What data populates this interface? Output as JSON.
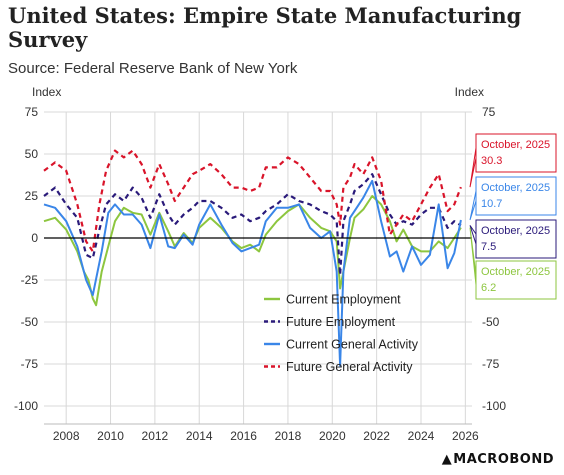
{
  "header": {
    "title": "United States: Empire State Manufacturing Survey",
    "subtitle": "Source: Federal Reserve Bank of New York"
  },
  "logo_text": "MACROBOND",
  "chart_data": {
    "type": "line",
    "ylabel_left": "Index",
    "ylabel_right": "Index",
    "ylim": [
      -100,
      75
    ],
    "yticks": [
      75,
      50,
      25,
      0,
      -25,
      -50,
      -75,
      -100
    ],
    "xlim": [
      2007,
      2026.3
    ],
    "xticks": [
      2008,
      2010,
      2012,
      2014,
      2016,
      2018,
      2020,
      2022,
      2024,
      2026
    ],
    "grid": true,
    "legend_position": "bottom-center",
    "series": [
      {
        "name": "Current Employment",
        "color": "#8dc63f",
        "style": "solid",
        "points": [
          [
            2007.0,
            10
          ],
          [
            2007.5,
            12
          ],
          [
            2008.0,
            5
          ],
          [
            2008.5,
            -8
          ],
          [
            2008.8,
            -20
          ],
          [
            2009.0,
            -25
          ],
          [
            2009.2,
            -36
          ],
          [
            2009.35,
            -40
          ],
          [
            2009.6,
            -20
          ],
          [
            2009.9,
            -5
          ],
          [
            2010.2,
            10
          ],
          [
            2010.6,
            18
          ],
          [
            2011.0,
            15
          ],
          [
            2011.4,
            14
          ],
          [
            2011.8,
            2
          ],
          [
            2012.2,
            15
          ],
          [
            2012.6,
            4
          ],
          [
            2012.9,
            -5
          ],
          [
            2013.3,
            3
          ],
          [
            2013.7,
            -3
          ],
          [
            2014.0,
            6
          ],
          [
            2014.5,
            12
          ],
          [
            2015.0,
            6
          ],
          [
            2015.5,
            -2
          ],
          [
            2015.9,
            -6
          ],
          [
            2016.3,
            -4
          ],
          [
            2016.7,
            -8
          ],
          [
            2017.0,
            2
          ],
          [
            2017.5,
            10
          ],
          [
            2018.0,
            16
          ],
          [
            2018.5,
            20
          ],
          [
            2019.0,
            12
          ],
          [
            2019.5,
            6
          ],
          [
            2019.9,
            4
          ],
          [
            2020.2,
            -2
          ],
          [
            2020.35,
            -30
          ],
          [
            2020.5,
            -20
          ],
          [
            2020.8,
            0
          ],
          [
            2021.0,
            12
          ],
          [
            2021.4,
            17
          ],
          [
            2021.8,
            25
          ],
          [
            2022.2,
            20
          ],
          [
            2022.6,
            10
          ],
          [
            2022.9,
            -2
          ],
          [
            2023.2,
            5
          ],
          [
            2023.6,
            -5
          ],
          [
            2024.0,
            -8
          ],
          [
            2024.4,
            -8
          ],
          [
            2024.8,
            -2
          ],
          [
            2025.2,
            -6
          ],
          [
            2025.5,
            0
          ],
          [
            2025.8,
            6.2
          ]
        ]
      },
      {
        "name": "Future Employment",
        "color": "#2a1a7a",
        "style": "dashed",
        "points": [
          [
            2007.0,
            25
          ],
          [
            2007.5,
            30
          ],
          [
            2008.0,
            20
          ],
          [
            2008.5,
            12
          ],
          [
            2008.9,
            -10
          ],
          [
            2009.2,
            -12
          ],
          [
            2009.5,
            5
          ],
          [
            2009.8,
            20
          ],
          [
            2010.2,
            26
          ],
          [
            2010.6,
            22
          ],
          [
            2011.0,
            30
          ],
          [
            2011.4,
            24
          ],
          [
            2011.8,
            12
          ],
          [
            2012.2,
            26
          ],
          [
            2012.6,
            14
          ],
          [
            2012.9,
            8
          ],
          [
            2013.3,
            14
          ],
          [
            2013.7,
            18
          ],
          [
            2014.0,
            22
          ],
          [
            2014.5,
            22
          ],
          [
            2015.0,
            18
          ],
          [
            2015.5,
            12
          ],
          [
            2015.9,
            14
          ],
          [
            2016.3,
            10
          ],
          [
            2016.7,
            12
          ],
          [
            2017.0,
            16
          ],
          [
            2017.5,
            20
          ],
          [
            2018.0,
            26
          ],
          [
            2018.5,
            22
          ],
          [
            2019.0,
            20
          ],
          [
            2019.5,
            16
          ],
          [
            2019.9,
            14
          ],
          [
            2020.2,
            10
          ],
          [
            2020.35,
            -22
          ],
          [
            2020.5,
            10
          ],
          [
            2020.8,
            20
          ],
          [
            2021.0,
            28
          ],
          [
            2021.4,
            32
          ],
          [
            2021.8,
            38
          ],
          [
            2022.2,
            26
          ],
          [
            2022.6,
            14
          ],
          [
            2022.9,
            8
          ],
          [
            2023.2,
            10
          ],
          [
            2023.6,
            8
          ],
          [
            2024.0,
            14
          ],
          [
            2024.4,
            18
          ],
          [
            2024.8,
            18
          ],
          [
            2025.2,
            6
          ],
          [
            2025.5,
            10
          ],
          [
            2025.8,
            7.5
          ]
        ]
      },
      {
        "name": "Current General Activity",
        "color": "#3a86e8",
        "style": "solid",
        "points": [
          [
            2007.0,
            20
          ],
          [
            2007.5,
            18
          ],
          [
            2008.0,
            10
          ],
          [
            2008.5,
            -5
          ],
          [
            2008.9,
            -25
          ],
          [
            2009.2,
            -34
          ],
          [
            2009.6,
            -8
          ],
          [
            2009.9,
            15
          ],
          [
            2010.2,
            20
          ],
          [
            2010.6,
            14
          ],
          [
            2011.0,
            14
          ],
          [
            2011.4,
            8
          ],
          [
            2011.8,
            -6
          ],
          [
            2012.2,
            14
          ],
          [
            2012.6,
            -5
          ],
          [
            2012.9,
            -6
          ],
          [
            2013.3,
            2
          ],
          [
            2013.7,
            -4
          ],
          [
            2014.0,
            8
          ],
          [
            2014.5,
            20
          ],
          [
            2015.0,
            8
          ],
          [
            2015.5,
            -3
          ],
          [
            2015.9,
            -8
          ],
          [
            2016.3,
            -6
          ],
          [
            2016.7,
            -4
          ],
          [
            2017.0,
            10
          ],
          [
            2017.5,
            18
          ],
          [
            2018.0,
            18
          ],
          [
            2018.5,
            20
          ],
          [
            2019.0,
            6
          ],
          [
            2019.5,
            0
          ],
          [
            2019.9,
            4
          ],
          [
            2020.2,
            -20
          ],
          [
            2020.35,
            -76
          ],
          [
            2020.5,
            -20
          ],
          [
            2020.8,
            12
          ],
          [
            2021.0,
            16
          ],
          [
            2021.4,
            24
          ],
          [
            2021.8,
            34
          ],
          [
            2022.2,
            10
          ],
          [
            2022.6,
            -11
          ],
          [
            2022.9,
            -8
          ],
          [
            2023.2,
            -20
          ],
          [
            2023.6,
            -5
          ],
          [
            2024.0,
            -16
          ],
          [
            2024.4,
            -10
          ],
          [
            2024.8,
            20
          ],
          [
            2025.2,
            -18
          ],
          [
            2025.5,
            -9
          ],
          [
            2025.8,
            10.7
          ]
        ]
      },
      {
        "name": "Future General Activity",
        "color": "#d9142a",
        "style": "dashed",
        "points": [
          [
            2007.0,
            40
          ],
          [
            2007.5,
            45
          ],
          [
            2008.0,
            40
          ],
          [
            2008.5,
            20
          ],
          [
            2008.9,
            -2
          ],
          [
            2009.2,
            -8
          ],
          [
            2009.5,
            20
          ],
          [
            2009.8,
            40
          ],
          [
            2010.2,
            52
          ],
          [
            2010.6,
            48
          ],
          [
            2011.0,
            52
          ],
          [
            2011.4,
            44
          ],
          [
            2011.8,
            30
          ],
          [
            2012.2,
            44
          ],
          [
            2012.6,
            32
          ],
          [
            2012.9,
            22
          ],
          [
            2013.3,
            30
          ],
          [
            2013.7,
            38
          ],
          [
            2014.0,
            40
          ],
          [
            2014.5,
            44
          ],
          [
            2015.0,
            38
          ],
          [
            2015.5,
            30
          ],
          [
            2015.9,
            30
          ],
          [
            2016.3,
            28
          ],
          [
            2016.7,
            30
          ],
          [
            2017.0,
            42
          ],
          [
            2017.5,
            42
          ],
          [
            2018.0,
            48
          ],
          [
            2018.5,
            44
          ],
          [
            2019.0,
            36
          ],
          [
            2019.5,
            28
          ],
          [
            2019.9,
            28
          ],
          [
            2020.2,
            20
          ],
          [
            2020.35,
            8
          ],
          [
            2020.5,
            30
          ],
          [
            2020.8,
            36
          ],
          [
            2021.0,
            44
          ],
          [
            2021.4,
            38
          ],
          [
            2021.8,
            48
          ],
          [
            2022.2,
            34
          ],
          [
            2022.6,
            2
          ],
          [
            2022.9,
            8
          ],
          [
            2023.2,
            14
          ],
          [
            2023.6,
            10
          ],
          [
            2024.0,
            20
          ],
          [
            2024.4,
            30
          ],
          [
            2024.8,
            38
          ],
          [
            2025.2,
            16
          ],
          [
            2025.5,
            20
          ],
          [
            2025.8,
            30.3
          ]
        ]
      }
    ],
    "callouts": [
      {
        "series": "Future General Activity",
        "date": "October, 2025",
        "value": "30.3",
        "color": "#d9142a"
      },
      {
        "series": "Current General Activity",
        "date": "October, 2025",
        "value": "10.7",
        "color": "#3a86e8"
      },
      {
        "series": "Future Employment",
        "date": "October, 2025",
        "value": "7.5",
        "color": "#2a1a7a"
      },
      {
        "series": "Current Employment",
        "date": "October, 2025",
        "value": "6.2",
        "color": "#8dc63f"
      }
    ]
  }
}
